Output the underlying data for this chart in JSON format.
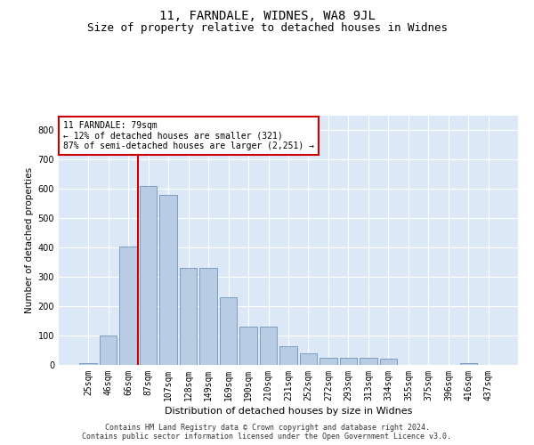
{
  "title1": "11, FARNDALE, WIDNES, WA8 9JL",
  "title2": "Size of property relative to detached houses in Widnes",
  "xlabel": "Distribution of detached houses by size in Widnes",
  "ylabel": "Number of detached properties",
  "annotation_line1": "11 FARNDALE: 79sqm",
  "annotation_line2": "← 12% of detached houses are smaller (321)",
  "annotation_line3": "87% of semi-detached houses are larger (2,251) →",
  "categories": [
    "25sqm",
    "46sqm",
    "66sqm",
    "87sqm",
    "107sqm",
    "128sqm",
    "149sqm",
    "169sqm",
    "190sqm",
    "210sqm",
    "231sqm",
    "252sqm",
    "272sqm",
    "293sqm",
    "313sqm",
    "334sqm",
    "355sqm",
    "375sqm",
    "396sqm",
    "416sqm",
    "437sqm"
  ],
  "values": [
    5,
    100,
    405,
    610,
    580,
    330,
    330,
    230,
    130,
    130,
    65,
    40,
    25,
    25,
    25,
    20,
    0,
    0,
    0,
    5,
    0
  ],
  "bar_color": "#b8cce4",
  "bar_edge_color": "#7094b8",
  "vline_color": "#cc0000",
  "vline_x": 2.5,
  "ylim": [
    0,
    850
  ],
  "yticks": [
    0,
    100,
    200,
    300,
    400,
    500,
    600,
    700,
    800
  ],
  "background_color": "#dce8f5",
  "footer_line1": "Contains HM Land Registry data © Crown copyright and database right 2024.",
  "footer_line2": "Contains public sector information licensed under the Open Government Licence v3.0.",
  "title1_fontsize": 10,
  "title2_fontsize": 9,
  "xlabel_fontsize": 8,
  "ylabel_fontsize": 7.5,
  "tick_fontsize": 7,
  "footer_fontsize": 6,
  "annotation_fontsize": 7
}
